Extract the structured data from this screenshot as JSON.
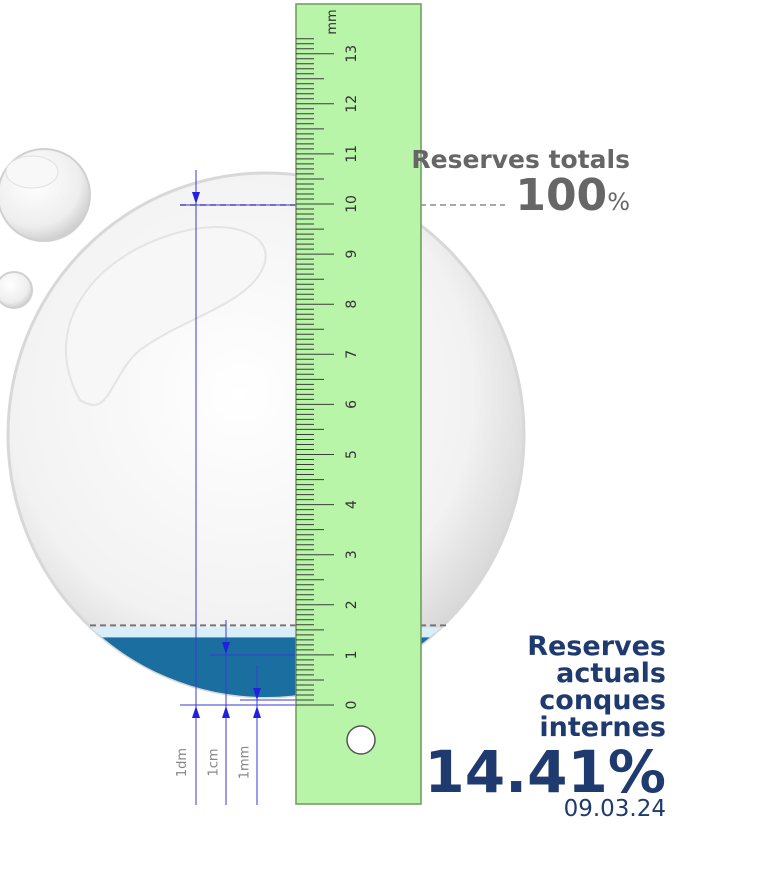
{
  "reserves_total": {
    "label": "Reserves totals",
    "value": "100",
    "unit": "%"
  },
  "reserves_current": {
    "label_lines": [
      "Reserves",
      "actuals",
      "conques",
      "internes"
    ],
    "value": "14.41%",
    "date": "09.03.24",
    "fill_fraction": 0.1441
  },
  "ruler": {
    "unit": "mm",
    "major_labels": [
      "0",
      "1",
      "2",
      "3",
      "4",
      "5",
      "6",
      "7",
      "8",
      "9",
      "10",
      "11",
      "12",
      "13"
    ],
    "fill_color": "#b8f5a8",
    "border_color": "#6a9a5a"
  },
  "scale_markers": {
    "labels": [
      "1dm",
      "1cm",
      "1mm"
    ]
  },
  "colors": {
    "water": "#1a6fa0",
    "text_current": "#1f3a6e",
    "text_total": "#666666",
    "guide": "#3a3ad8"
  }
}
